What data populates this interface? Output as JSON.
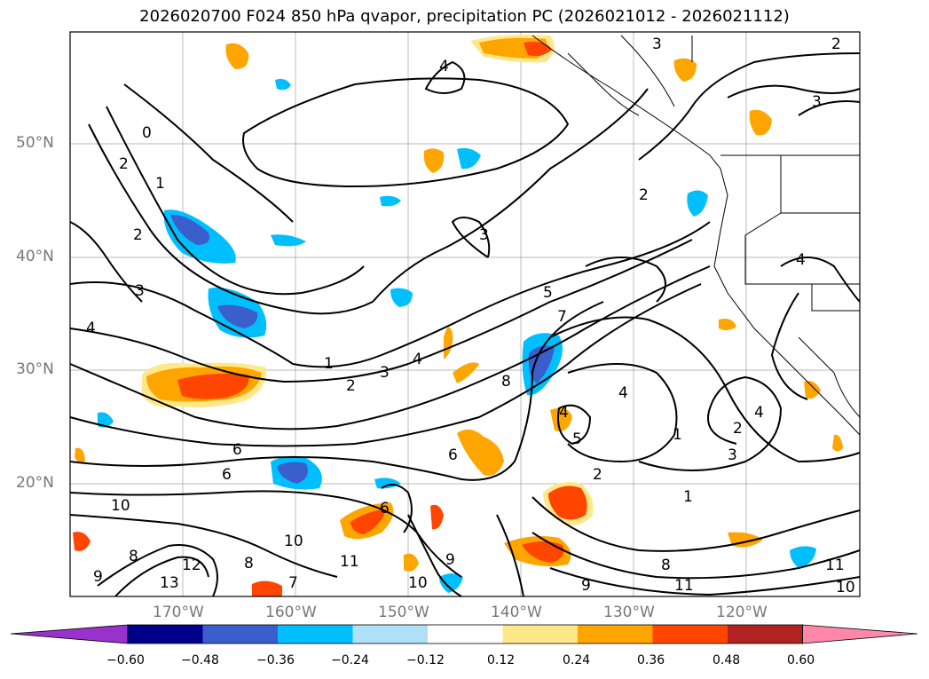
{
  "title": "2026020700 F024 850 hPa qvapor, precipitation PC (2026021012 - 2026021112)",
  "lat_labels": [
    "50°N",
    "40°N",
    "30°N",
    "20°N"
  ],
  "lon_labels": [
    "170°W",
    "160°W",
    "150°W",
    "140°W",
    "130°W",
    "120°W"
  ],
  "colorbar": {
    "ticks": [
      "−0.60",
      "−0.48",
      "−0.36",
      "−0.24",
      "−0.12",
      "0.12",
      "0.24",
      "0.36",
      "0.48",
      "0.60"
    ],
    "colors": [
      "#9932cc",
      "#00008b",
      "#3a5fcd",
      "#00bfff",
      "#b0e0f8",
      "#ffffff",
      "#ffe88a",
      "#ffa500",
      "#ff4500",
      "#b22222",
      "#ff88aa"
    ]
  },
  "contour_labels": [
    "0",
    "1",
    "2",
    "3",
    "4",
    "5",
    "6",
    "7",
    "8",
    "9",
    "10",
    "11",
    "12",
    "13"
  ]
}
